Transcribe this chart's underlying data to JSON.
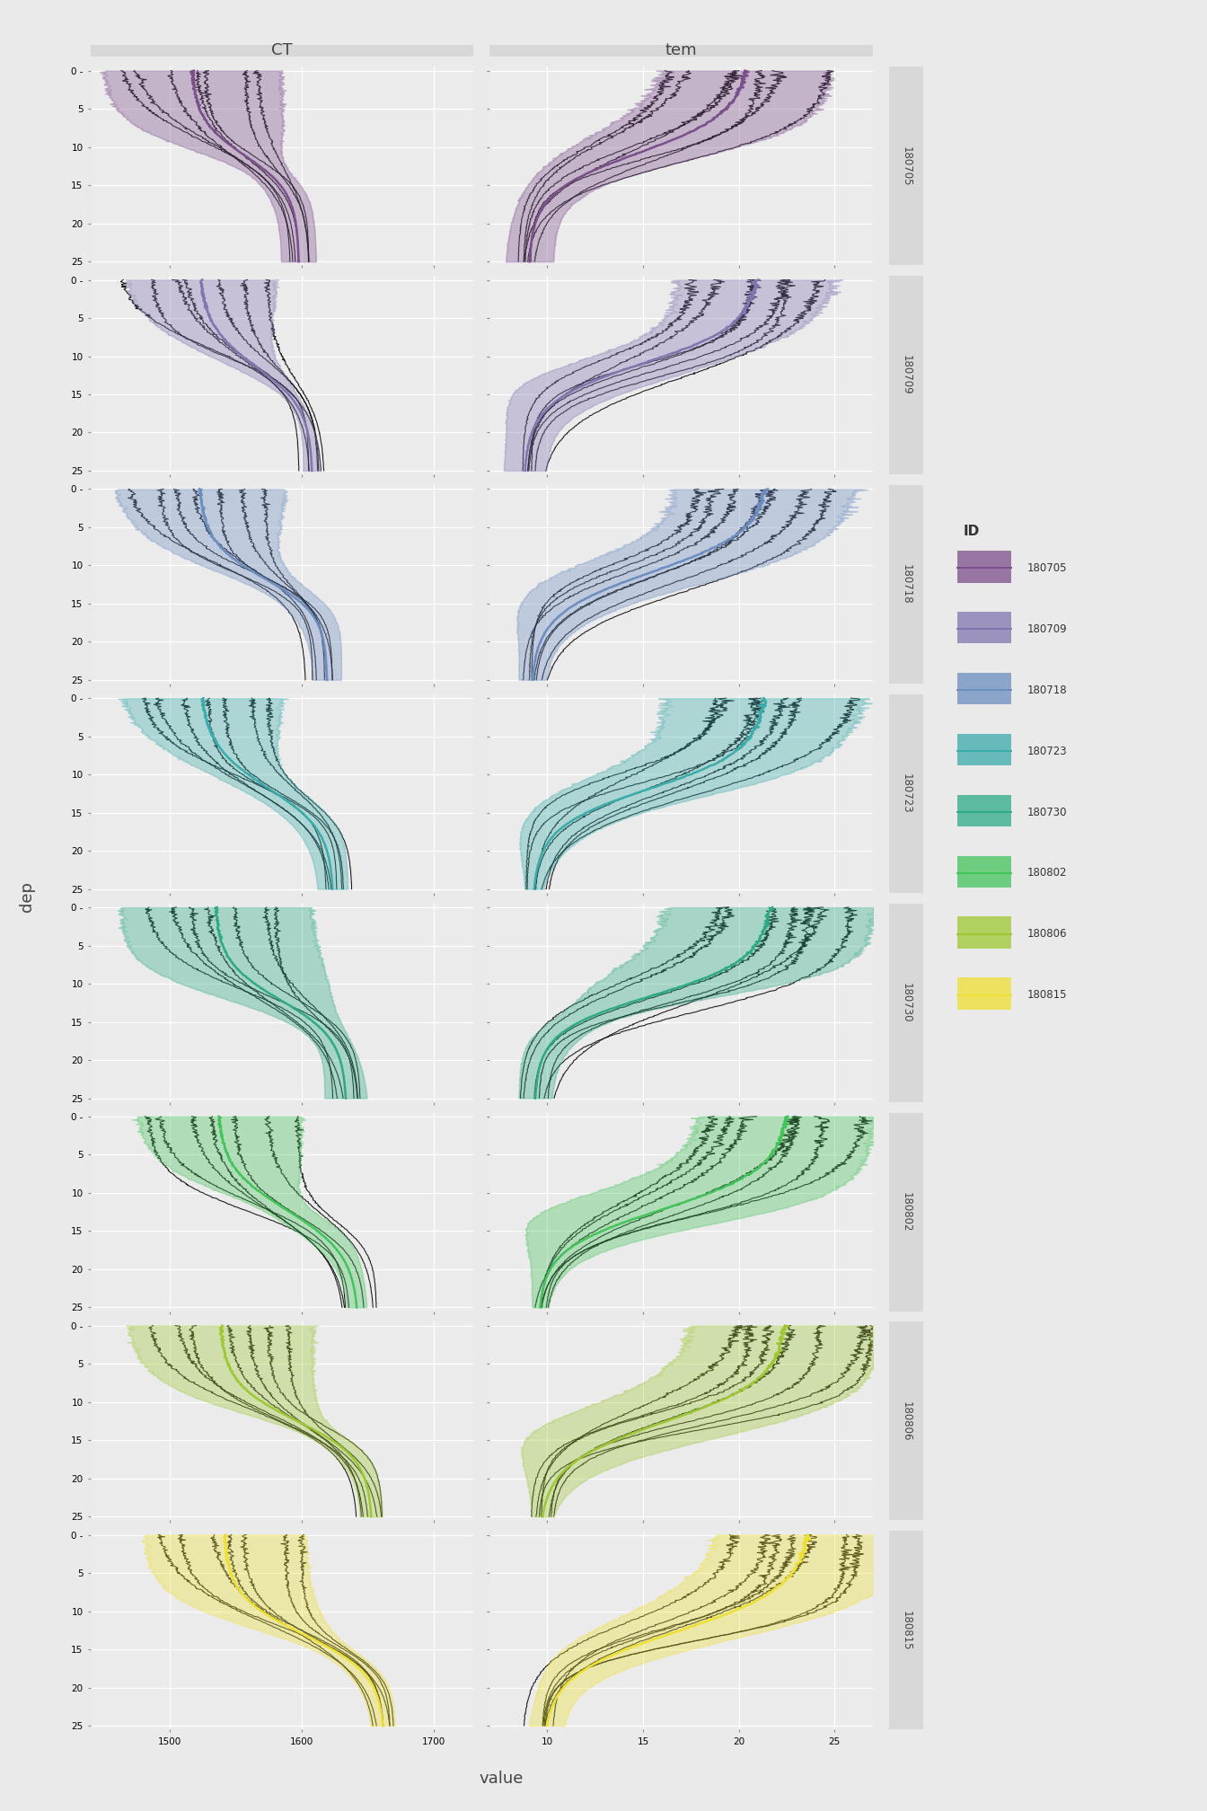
{
  "cruise_ids": [
    "180705",
    "180709",
    "180718",
    "180723",
    "180730",
    "180802",
    "180806",
    "180815"
  ],
  "colors": {
    "180705": "#7B4F8C",
    "180709": "#8275B0",
    "180718": "#6B8DC0",
    "180723": "#3AACAB",
    "180730": "#2DAA88",
    "180802": "#42C45A",
    "180806": "#9DC832",
    "180815": "#EDE030"
  },
  "col_titles": [
    "CT",
    "tem"
  ],
  "ylabel": "dep",
  "xlabel": "value",
  "dep_ticks": [
    0,
    5,
    10,
    15,
    20,
    25
  ],
  "CT_xlim": [
    1440,
    1730
  ],
  "tem_xlim": [
    7,
    27
  ],
  "CT_xticks": [
    1500,
    1600,
    1700
  ],
  "tem_xticks": [
    10,
    15,
    20,
    25
  ],
  "background_color": "#EAEAEA",
  "panel_bg": "#EBEBEB",
  "grid_color": "#FFFFFF",
  "strip_bg": "#D8D8D8",
  "legend_title": "ID",
  "n_black_lines": 7,
  "n_ribbon_lines": 5
}
